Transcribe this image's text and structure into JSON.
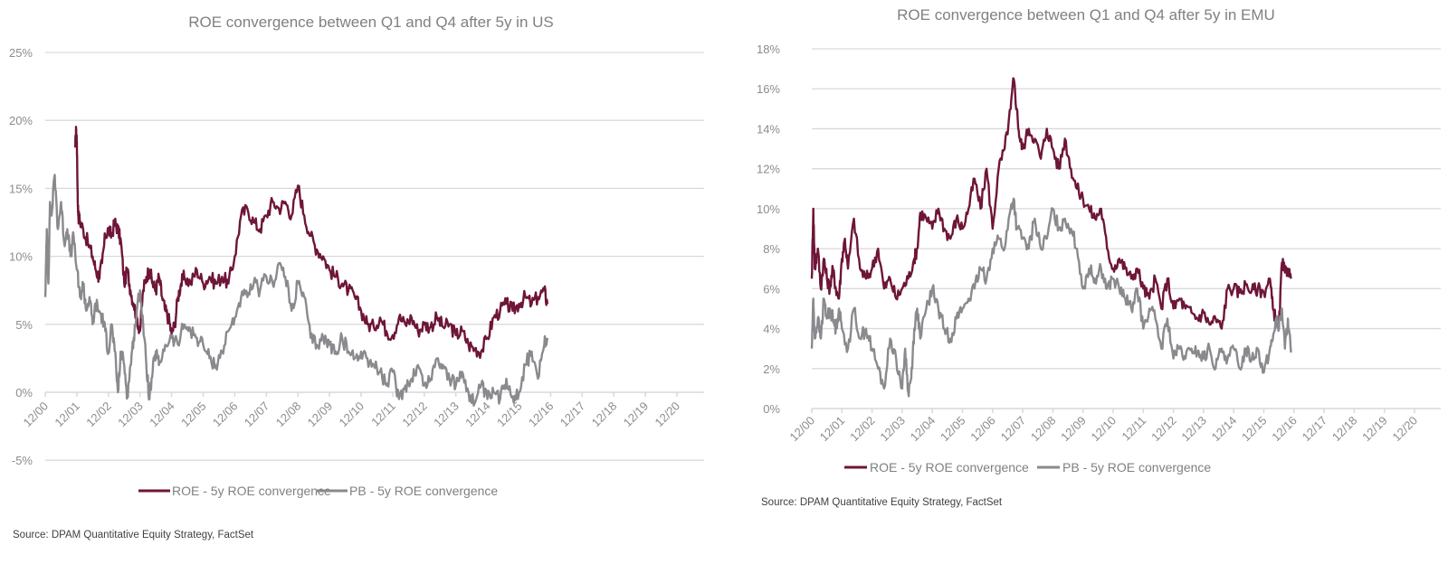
{
  "colors": {
    "roe": "#6e1538",
    "pb": "#8a8a8e",
    "grid": "#d9d9d9",
    "text": "#808080"
  },
  "chart_data": [
    {
      "id": "us",
      "type": "line",
      "title": "ROE convergence between Q1 and Q4 after 5y in US",
      "xlabel": "",
      "ylabel": "",
      "x_tick_labels": [
        "12/00",
        "12/01",
        "12/02",
        "12/03",
        "12/04",
        "12/05",
        "12/06",
        "12/07",
        "12/08",
        "12/09",
        "12/10",
        "12/11",
        "12/12",
        "12/13",
        "12/14",
        "12/15",
        "12/16",
        "12/17",
        "12/18",
        "12/19",
        "12/20"
      ],
      "y_ticks": [
        -5,
        0,
        5,
        10,
        15,
        20,
        25
      ],
      "y_tick_labels": [
        "-5%",
        "0%",
        "5%",
        "10%",
        "15%",
        "20%",
        "25%"
      ],
      "ylim": [
        -5,
        25
      ],
      "xlim": [
        0,
        20.6
      ],
      "x_unit": "years since 12/00",
      "grid": true,
      "legend_position": "bottom",
      "series": [
        {
          "name": "ROE - 5y ROE convergence",
          "color_key": "roe",
          "x": [
            0.95,
            0.98,
            1.0,
            1.03,
            1.05,
            1.1,
            1.2,
            1.35,
            1.5,
            1.6,
            1.7,
            1.8,
            1.9,
            2.0,
            2.1,
            2.2,
            2.3,
            2.4,
            2.5,
            2.6,
            2.7,
            2.8,
            2.9,
            3.0,
            3.1,
            3.2,
            3.3,
            3.4,
            3.5,
            3.6,
            3.7,
            3.8,
            3.9,
            4.0,
            4.1,
            4.2,
            4.3,
            4.4,
            4.6,
            4.8,
            5.0,
            5.2,
            5.4,
            5.6,
            5.8,
            6.0,
            6.2,
            6.4,
            6.6,
            6.8,
            7.0,
            7.2,
            7.4,
            7.6,
            7.8,
            8.0,
            8.2,
            8.4,
            8.6,
            8.8,
            9.0,
            9.2,
            9.4,
            9.6,
            9.8,
            10.0,
            10.2,
            10.4,
            10.6,
            10.8,
            11.0,
            11.2,
            11.4,
            11.6,
            11.8,
            12.0,
            12.2,
            12.4,
            12.6,
            12.8,
            13.0,
            13.2,
            13.4,
            13.6,
            13.8,
            14.0,
            14.2,
            14.4,
            14.6,
            14.8,
            15.0,
            15.2,
            15.4,
            15.6,
            15.8,
            15.9
          ],
          "y": [
            18.0,
            19.3,
            18.5,
            14.0,
            13.0,
            12.6,
            12.0,
            11.0,
            10.0,
            9.0,
            8.5,
            9.5,
            11.5,
            12.0,
            11.5,
            12.5,
            12.0,
            11.0,
            8.0,
            9.0,
            7.5,
            6.5,
            5.5,
            4.5,
            7.5,
            8.5,
            9.0,
            8.0,
            7.5,
            8.5,
            7.0,
            6.0,
            5.5,
            4.3,
            5.0,
            7.0,
            8.0,
            8.5,
            8.0,
            9.0,
            8.0,
            8.5,
            8.0,
            8.5,
            8.0,
            10.0,
            13.0,
            13.5,
            12.5,
            12.0,
            13.0,
            14.0,
            13.5,
            14.0,
            13.0,
            15.2,
            13.0,
            11.5,
            10.5,
            10.0,
            9.0,
            8.5,
            8.0,
            7.5,
            7.0,
            6.0,
            5.0,
            4.8,
            5.5,
            4.5,
            4.2,
            5.5,
            5.0,
            5.5,
            4.5,
            5.0,
            4.8,
            5.5,
            4.8,
            5.0,
            4.2,
            4.5,
            3.5,
            3.2,
            3.0,
            4.0,
            5.5,
            6.0,
            6.5,
            6.0,
            6.5,
            7.0,
            6.5,
            7.0,
            7.5,
            6.5
          ]
        },
        {
          "name": "PB - 5y ROE convergence",
          "color_key": "pb",
          "x": [
            0.0,
            0.05,
            0.1,
            0.15,
            0.2,
            0.3,
            0.4,
            0.5,
            0.6,
            0.7,
            0.8,
            0.9,
            1.0,
            1.1,
            1.2,
            1.3,
            1.4,
            1.5,
            1.6,
            1.7,
            1.8,
            1.9,
            2.0,
            2.1,
            2.2,
            2.3,
            2.4,
            2.5,
            2.6,
            2.7,
            2.8,
            2.9,
            3.0,
            3.1,
            3.2,
            3.3,
            3.4,
            3.5,
            3.6,
            3.8,
            4.0,
            4.2,
            4.4,
            4.6,
            4.8,
            5.0,
            5.2,
            5.4,
            5.6,
            5.8,
            6.0,
            6.2,
            6.4,
            6.6,
            6.8,
            7.0,
            7.2,
            7.4,
            7.6,
            7.8,
            8.0,
            8.2,
            8.4,
            8.6,
            8.8,
            9.0,
            9.2,
            9.4,
            9.6,
            9.8,
            10.0,
            10.2,
            10.4,
            10.6,
            10.8,
            11.0,
            11.2,
            11.4,
            11.6,
            11.8,
            12.0,
            12.2,
            12.4,
            12.6,
            12.8,
            13.0,
            13.2,
            13.4,
            13.6,
            13.8,
            14.0,
            14.2,
            14.4,
            14.6,
            14.8,
            15.0,
            15.2,
            15.4,
            15.6,
            15.8,
            15.9
          ],
          "y": [
            7.0,
            12.0,
            8.0,
            14.0,
            13.0,
            16.0,
            12.0,
            14.0,
            11.0,
            12.0,
            10.0,
            11.5,
            9.0,
            7.0,
            8.0,
            6.0,
            7.0,
            5.0,
            6.5,
            6.0,
            5.5,
            4.5,
            3.0,
            5.0,
            3.0,
            0.0,
            3.0,
            2.0,
            -0.3,
            2.0,
            4.0,
            6.0,
            7.5,
            5.0,
            2.0,
            -0.5,
            1.5,
            3.0,
            2.0,
            3.5,
            4.0,
            3.5,
            5.0,
            4.5,
            4.0,
            3.5,
            2.5,
            2.0,
            3.0,
            4.5,
            5.5,
            7.0,
            7.0,
            8.0,
            7.5,
            8.5,
            8.0,
            9.5,
            8.5,
            6.0,
            8.0,
            7.0,
            4.0,
            3.5,
            4.0,
            3.5,
            3.0,
            4.0,
            3.0,
            2.5,
            3.0,
            2.5,
            2.0,
            1.5,
            0.5,
            1.5,
            -0.5,
            0.5,
            1.0,
            2.0,
            0.5,
            1.0,
            2.5,
            2.0,
            1.0,
            0.5,
            1.5,
            0.0,
            -0.8,
            0.5,
            -0.5,
            0.0,
            -0.5,
            1.0,
            -0.3,
            0.0,
            2.0,
            3.0,
            1.0,
            3.5,
            4.0
          ]
        }
      ]
    },
    {
      "id": "emu",
      "type": "line",
      "title": "ROE convergence between Q1 and Q4 after 5y in EMU",
      "xlabel": "",
      "ylabel": "",
      "x_tick_labels": [
        "12/00",
        "12/01",
        "12/02",
        "12/03",
        "12/04",
        "12/05",
        "12/06",
        "12/07",
        "12/08",
        "12/09",
        "12/10",
        "12/11",
        "12/12",
        "12/13",
        "12/14",
        "12/15",
        "12/16",
        "12/17",
        "12/18",
        "12/19",
        "12/20"
      ],
      "y_ticks": [
        0,
        2,
        4,
        6,
        8,
        10,
        12,
        14,
        16,
        18
      ],
      "y_tick_labels": [
        "0%",
        "2%",
        "4%",
        "6%",
        "8%",
        "10%",
        "12%",
        "14%",
        "16%",
        "18%"
      ],
      "ylim": [
        0,
        18
      ],
      "xlim": [
        0,
        20.9
      ],
      "x_unit": "years since 12/00",
      "grid": true,
      "legend_position": "bottom",
      "series": [
        {
          "name": "ROE - 5y ROE convergence",
          "color_key": "roe",
          "x": [
            0.0,
            0.05,
            0.1,
            0.2,
            0.3,
            0.4,
            0.5,
            0.6,
            0.7,
            0.8,
            0.9,
            1.0,
            1.1,
            1.2,
            1.4,
            1.6,
            1.8,
            2.0,
            2.2,
            2.4,
            2.6,
            2.8,
            3.0,
            3.2,
            3.4,
            3.5,
            3.6,
            3.8,
            4.0,
            4.2,
            4.4,
            4.6,
            4.8,
            5.0,
            5.2,
            5.4,
            5.6,
            5.8,
            6.0,
            6.2,
            6.4,
            6.6,
            6.7,
            6.8,
            6.9,
            7.0,
            7.2,
            7.4,
            7.6,
            7.8,
            8.0,
            8.2,
            8.4,
            8.6,
            8.8,
            9.0,
            9.2,
            9.4,
            9.6,
            9.8,
            10.0,
            10.2,
            10.4,
            10.6,
            10.8,
            11.0,
            11.2,
            11.4,
            11.6,
            11.8,
            12.0,
            12.2,
            12.4,
            12.6,
            12.8,
            13.0,
            13.2,
            13.4,
            13.6,
            13.8,
            14.0,
            14.2,
            14.4,
            14.6,
            14.8,
            15.0,
            15.2,
            15.3,
            15.4,
            15.5,
            15.6,
            15.7,
            15.8,
            15.9
          ],
          "y": [
            6.5,
            10.0,
            7.0,
            8.0,
            6.0,
            7.5,
            6.5,
            6.0,
            7.0,
            6.0,
            5.5,
            7.5,
            8.5,
            7.0,
            9.5,
            7.0,
            6.5,
            7.0,
            8.0,
            6.0,
            6.5,
            5.5,
            6.0,
            6.5,
            7.5,
            8.0,
            9.8,
            9.5,
            9.0,
            10.0,
            9.0,
            8.5,
            9.5,
            9.0,
            10.0,
            11.5,
            10.0,
            12.0,
            9.0,
            12.0,
            13.0,
            15.0,
            16.5,
            15.0,
            13.5,
            13.0,
            14.0,
            13.5,
            12.5,
            14.0,
            13.0,
            12.0,
            13.5,
            12.0,
            11.0,
            10.5,
            10.0,
            9.5,
            10.0,
            8.0,
            7.0,
            7.5,
            7.0,
            6.5,
            7.0,
            6.0,
            5.5,
            6.5,
            5.0,
            6.5,
            5.0,
            5.5,
            5.0,
            4.8,
            4.5,
            4.8,
            4.2,
            4.5,
            4.0,
            6.0,
            6.0,
            5.8,
            6.2,
            5.9,
            6.0,
            5.8,
            6.5,
            5.0,
            4.5,
            4.0,
            7.3,
            6.8,
            7.0,
            6.5
          ]
        },
        {
          "name": "PB - 5y ROE convergence",
          "color_key": "pb",
          "x": [
            0.0,
            0.05,
            0.1,
            0.2,
            0.3,
            0.4,
            0.5,
            0.6,
            0.7,
            0.8,
            0.9,
            1.0,
            1.2,
            1.4,
            1.6,
            1.8,
            2.0,
            2.2,
            2.4,
            2.6,
            2.8,
            3.0,
            3.1,
            3.2,
            3.3,
            3.4,
            3.5,
            3.6,
            3.8,
            4.0,
            4.2,
            4.4,
            4.6,
            4.8,
            5.0,
            5.2,
            5.4,
            5.6,
            5.8,
            6.0,
            6.2,
            6.4,
            6.6,
            6.7,
            6.8,
            7.0,
            7.2,
            7.4,
            7.6,
            7.8,
            8.0,
            8.2,
            8.4,
            8.6,
            8.8,
            9.0,
            9.2,
            9.4,
            9.6,
            9.8,
            10.0,
            10.2,
            10.4,
            10.6,
            10.8,
            11.0,
            11.2,
            11.4,
            11.6,
            11.8,
            12.0,
            12.2,
            12.4,
            12.6,
            12.8,
            13.0,
            13.2,
            13.4,
            13.6,
            13.8,
            14.0,
            14.2,
            14.4,
            14.6,
            14.8,
            15.0,
            15.2,
            15.3,
            15.4,
            15.5,
            15.6,
            15.7,
            15.8,
            15.9
          ],
          "y": [
            3.0,
            5.5,
            3.5,
            4.5,
            3.5,
            5.5,
            4.5,
            5.0,
            4.5,
            4.0,
            5.0,
            4.0,
            3.0,
            5.0,
            3.5,
            4.0,
            3.0,
            2.0,
            1.0,
            3.5,
            2.5,
            1.0,
            3.0,
            0.8,
            1.5,
            4.0,
            5.0,
            3.5,
            5.0,
            6.0,
            5.0,
            4.0,
            3.5,
            4.5,
            5.0,
            5.5,
            6.0,
            7.0,
            6.5,
            8.0,
            8.5,
            8.0,
            10.0,
            10.5,
            9.0,
            8.5,
            8.0,
            9.5,
            8.0,
            8.5,
            10.0,
            9.0,
            9.5,
            9.0,
            8.0,
            6.0,
            7.0,
            6.5,
            7.0,
            6.0,
            6.5,
            6.0,
            5.5,
            5.0,
            6.0,
            4.0,
            5.0,
            4.5,
            3.0,
            4.5,
            2.5,
            3.0,
            2.5,
            3.0,
            2.8,
            2.5,
            3.0,
            2.0,
            3.0,
            2.5,
            3.0,
            2.0,
            3.0,
            2.5,
            3.0,
            1.8,
            3.0,
            3.5,
            4.5,
            4.0,
            5.0,
            3.0,
            4.5,
            2.8
          ]
        }
      ]
    }
  ],
  "legend": {
    "roe_label": "ROE - 5y ROE convergence",
    "pb_label": "PB - 5y ROE convergence"
  },
  "source_text": "Source: DPAM Quantitative Equity Strategy, FactSet"
}
